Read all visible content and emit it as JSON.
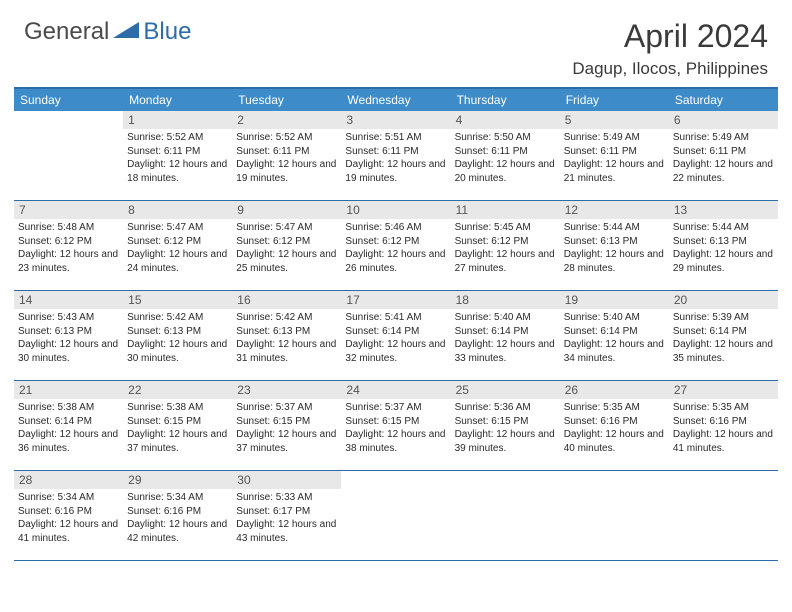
{
  "logo": {
    "part1": "General",
    "part2": "Blue"
  },
  "title": "April 2024",
  "location": "Dagup, Ilocos, Philippines",
  "weekdays": [
    "Sunday",
    "Monday",
    "Tuesday",
    "Wednesday",
    "Thursday",
    "Friday",
    "Saturday"
  ],
  "colors": {
    "header_bg": "#3d8bc9",
    "header_border": "#2d6ca8",
    "daynum_bg": "#e8e8e8",
    "logo_blue": "#2d6ca8",
    "text": "#3a3a3a"
  },
  "weeks": [
    [
      {
        "n": "",
        "sr": "",
        "ss": "",
        "dl": ""
      },
      {
        "n": "1",
        "sr": "Sunrise: 5:52 AM",
        "ss": "Sunset: 6:11 PM",
        "dl": "Daylight: 12 hours and 18 minutes."
      },
      {
        "n": "2",
        "sr": "Sunrise: 5:52 AM",
        "ss": "Sunset: 6:11 PM",
        "dl": "Daylight: 12 hours and 19 minutes."
      },
      {
        "n": "3",
        "sr": "Sunrise: 5:51 AM",
        "ss": "Sunset: 6:11 PM",
        "dl": "Daylight: 12 hours and 19 minutes."
      },
      {
        "n": "4",
        "sr": "Sunrise: 5:50 AM",
        "ss": "Sunset: 6:11 PM",
        "dl": "Daylight: 12 hours and 20 minutes."
      },
      {
        "n": "5",
        "sr": "Sunrise: 5:49 AM",
        "ss": "Sunset: 6:11 PM",
        "dl": "Daylight: 12 hours and 21 minutes."
      },
      {
        "n": "6",
        "sr": "Sunrise: 5:49 AM",
        "ss": "Sunset: 6:11 PM",
        "dl": "Daylight: 12 hours and 22 minutes."
      }
    ],
    [
      {
        "n": "7",
        "sr": "Sunrise: 5:48 AM",
        "ss": "Sunset: 6:12 PM",
        "dl": "Daylight: 12 hours and 23 minutes."
      },
      {
        "n": "8",
        "sr": "Sunrise: 5:47 AM",
        "ss": "Sunset: 6:12 PM",
        "dl": "Daylight: 12 hours and 24 minutes."
      },
      {
        "n": "9",
        "sr": "Sunrise: 5:47 AM",
        "ss": "Sunset: 6:12 PM",
        "dl": "Daylight: 12 hours and 25 minutes."
      },
      {
        "n": "10",
        "sr": "Sunrise: 5:46 AM",
        "ss": "Sunset: 6:12 PM",
        "dl": "Daylight: 12 hours and 26 minutes."
      },
      {
        "n": "11",
        "sr": "Sunrise: 5:45 AM",
        "ss": "Sunset: 6:12 PM",
        "dl": "Daylight: 12 hours and 27 minutes."
      },
      {
        "n": "12",
        "sr": "Sunrise: 5:44 AM",
        "ss": "Sunset: 6:13 PM",
        "dl": "Daylight: 12 hours and 28 minutes."
      },
      {
        "n": "13",
        "sr": "Sunrise: 5:44 AM",
        "ss": "Sunset: 6:13 PM",
        "dl": "Daylight: 12 hours and 29 minutes."
      }
    ],
    [
      {
        "n": "14",
        "sr": "Sunrise: 5:43 AM",
        "ss": "Sunset: 6:13 PM",
        "dl": "Daylight: 12 hours and 30 minutes."
      },
      {
        "n": "15",
        "sr": "Sunrise: 5:42 AM",
        "ss": "Sunset: 6:13 PM",
        "dl": "Daylight: 12 hours and 30 minutes."
      },
      {
        "n": "16",
        "sr": "Sunrise: 5:42 AM",
        "ss": "Sunset: 6:13 PM",
        "dl": "Daylight: 12 hours and 31 minutes."
      },
      {
        "n": "17",
        "sr": "Sunrise: 5:41 AM",
        "ss": "Sunset: 6:14 PM",
        "dl": "Daylight: 12 hours and 32 minutes."
      },
      {
        "n": "18",
        "sr": "Sunrise: 5:40 AM",
        "ss": "Sunset: 6:14 PM",
        "dl": "Daylight: 12 hours and 33 minutes."
      },
      {
        "n": "19",
        "sr": "Sunrise: 5:40 AM",
        "ss": "Sunset: 6:14 PM",
        "dl": "Daylight: 12 hours and 34 minutes."
      },
      {
        "n": "20",
        "sr": "Sunrise: 5:39 AM",
        "ss": "Sunset: 6:14 PM",
        "dl": "Daylight: 12 hours and 35 minutes."
      }
    ],
    [
      {
        "n": "21",
        "sr": "Sunrise: 5:38 AM",
        "ss": "Sunset: 6:14 PM",
        "dl": "Daylight: 12 hours and 36 minutes."
      },
      {
        "n": "22",
        "sr": "Sunrise: 5:38 AM",
        "ss": "Sunset: 6:15 PM",
        "dl": "Daylight: 12 hours and 37 minutes."
      },
      {
        "n": "23",
        "sr": "Sunrise: 5:37 AM",
        "ss": "Sunset: 6:15 PM",
        "dl": "Daylight: 12 hours and 37 minutes."
      },
      {
        "n": "24",
        "sr": "Sunrise: 5:37 AM",
        "ss": "Sunset: 6:15 PM",
        "dl": "Daylight: 12 hours and 38 minutes."
      },
      {
        "n": "25",
        "sr": "Sunrise: 5:36 AM",
        "ss": "Sunset: 6:15 PM",
        "dl": "Daylight: 12 hours and 39 minutes."
      },
      {
        "n": "26",
        "sr": "Sunrise: 5:35 AM",
        "ss": "Sunset: 6:16 PM",
        "dl": "Daylight: 12 hours and 40 minutes."
      },
      {
        "n": "27",
        "sr": "Sunrise: 5:35 AM",
        "ss": "Sunset: 6:16 PM",
        "dl": "Daylight: 12 hours and 41 minutes."
      }
    ],
    [
      {
        "n": "28",
        "sr": "Sunrise: 5:34 AM",
        "ss": "Sunset: 6:16 PM",
        "dl": "Daylight: 12 hours and 41 minutes."
      },
      {
        "n": "29",
        "sr": "Sunrise: 5:34 AM",
        "ss": "Sunset: 6:16 PM",
        "dl": "Daylight: 12 hours and 42 minutes."
      },
      {
        "n": "30",
        "sr": "Sunrise: 5:33 AM",
        "ss": "Sunset: 6:17 PM",
        "dl": "Daylight: 12 hours and 43 minutes."
      },
      {
        "n": "",
        "sr": "",
        "ss": "",
        "dl": ""
      },
      {
        "n": "",
        "sr": "",
        "ss": "",
        "dl": ""
      },
      {
        "n": "",
        "sr": "",
        "ss": "",
        "dl": ""
      },
      {
        "n": "",
        "sr": "",
        "ss": "",
        "dl": ""
      }
    ]
  ]
}
